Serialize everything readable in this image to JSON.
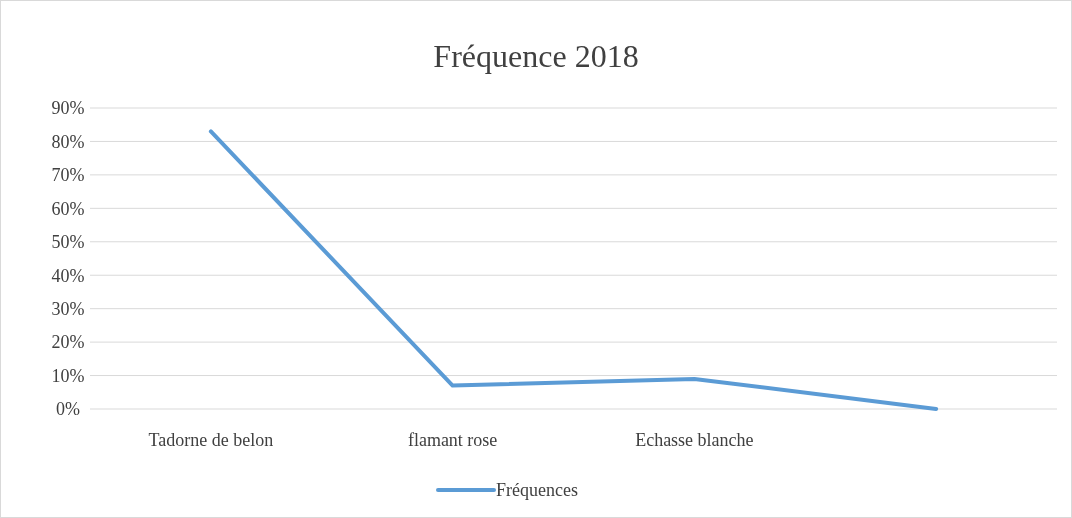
{
  "chart_data": {
    "type": "line",
    "title": "Fréquence 2018",
    "categories": [
      "Tadorne de belon",
      "flamant rose",
      "Echasse blanche",
      null
    ],
    "series": [
      {
        "name": "Fréquences",
        "color": "#5b9bd5",
        "values": [
          83,
          7,
          9,
          0
        ]
      }
    ],
    "ylim": [
      0,
      90
    ],
    "yticks": [
      {
        "value": 0,
        "label": "0%"
      },
      {
        "value": 10,
        "label": "10%"
      },
      {
        "value": 20,
        "label": "20%"
      },
      {
        "value": 30,
        "label": "30%"
      },
      {
        "value": 40,
        "label": "40%"
      },
      {
        "value": 50,
        "label": "50%"
      },
      {
        "value": 60,
        "label": "60%"
      },
      {
        "value": 70,
        "label": "70%"
      },
      {
        "value": 80,
        "label": "80%"
      },
      {
        "value": 90,
        "label": "90%"
      }
    ],
    "grid": "y",
    "legend": "bottom",
    "marker": "none",
    "line_style": "solid"
  }
}
